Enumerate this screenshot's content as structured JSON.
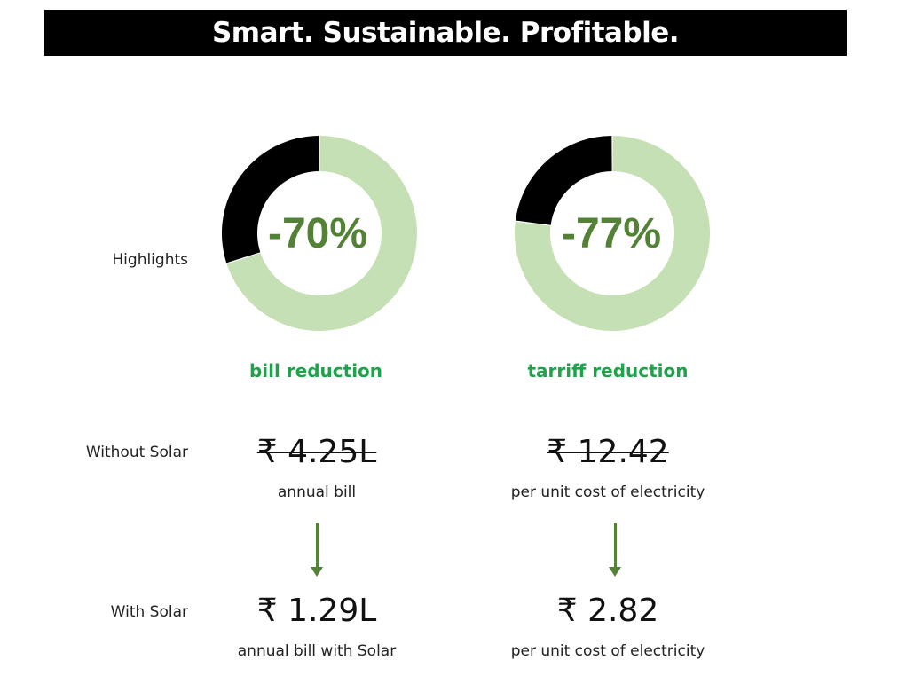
{
  "banner": {
    "title": "Smart. Sustainable. Profitable."
  },
  "rows": {
    "highlights": "Highlights",
    "without_solar": "Without Solar",
    "with_solar": "With Solar"
  },
  "colors": {
    "ring_green": "#c5e0b4",
    "ring_black": "#000000",
    "percent_text": "#538135",
    "caption": "#1fa34a",
    "arrow": "#538135"
  },
  "highlights": [
    {
      "percent_label": "-70%",
      "reduction_fraction": 0.7,
      "caption": "bill reduction"
    },
    {
      "percent_label": "-77%",
      "reduction_fraction": 0.77,
      "caption": "tarriff reduction"
    }
  ],
  "without_solar": [
    {
      "value": "₹ 4.25L",
      "label": "annual bill"
    },
    {
      "value": "₹ 12.42",
      "label": "per unit cost of electricity"
    }
  ],
  "with_solar": [
    {
      "value": "₹ 1.29L",
      "label": "annual bill with Solar"
    },
    {
      "value": "₹ 2.82",
      "label": "per unit cost of electricity"
    }
  ]
}
